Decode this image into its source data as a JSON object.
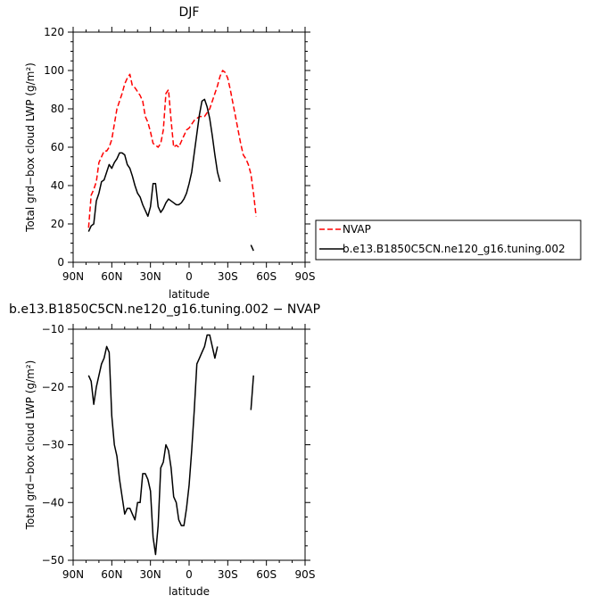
{
  "chart_data": [
    {
      "type": "line",
      "title": "DJF",
      "xlabel": "latitude",
      "ylabel": "Total grd−box cloud LWP (g/m²)",
      "xlim": [
        90,
        -90
      ],
      "ylim": [
        0,
        120
      ],
      "x_ticks": [
        90,
        60,
        30,
        0,
        -30,
        -60,
        -90
      ],
      "x_tick_labels": [
        "90N",
        "60N",
        "30N",
        "0",
        "30S",
        "60S",
        "90S"
      ],
      "y_ticks": [
        0,
        20,
        40,
        60,
        80,
        100,
        120
      ],
      "y_tick_labels": [
        "0",
        "20",
        "40",
        "60",
        "80",
        "100",
        "120"
      ],
      "legend": {
        "placement": "right",
        "entries": [
          "NVAP",
          "b.e13.B1850C5CN.ne120_g16.tuning.002"
        ]
      },
      "series": [
        {
          "name": "NVAP",
          "color": "#ff0000",
          "dash": "dashed",
          "segments": [
            [
              [
                78,
                18
              ],
              [
                76,
                35
              ],
              [
                74,
                38
              ],
              [
                72,
                42
              ],
              [
                70,
                52
              ],
              [
                68,
                55
              ],
              [
                66,
                58
              ],
              [
                64,
                58
              ],
              [
                62,
                60
              ],
              [
                60,
                64
              ],
              [
                58,
                72
              ],
              [
                56,
                80
              ],
              [
                54,
                84
              ],
              [
                52,
                88
              ],
              [
                50,
                93
              ],
              [
                48,
                96
              ],
              [
                46,
                98
              ],
              [
                44,
                92
              ],
              [
                42,
                91
              ],
              [
                40,
                89
              ],
              [
                38,
                87
              ],
              [
                36,
                84
              ],
              [
                34,
                76
              ],
              [
                32,
                73
              ],
              [
                30,
                68
              ],
              [
                28,
                62
              ],
              [
                26,
                61
              ],
              [
                24,
                60
              ],
              [
                22,
                62
              ],
              [
                20,
                69
              ],
              [
                18,
                88
              ],
              [
                16,
                90
              ],
              [
                14,
                74
              ],
              [
                12,
                60
              ],
              [
                10,
                61
              ],
              [
                8,
                60
              ],
              [
                6,
                63
              ],
              [
                4,
                66
              ],
              [
                2,
                69
              ],
              [
                0,
                70
              ],
              [
                -2,
                72
              ],
              [
                -4,
                74
              ],
              [
                -6,
                75
              ],
              [
                -8,
                76
              ],
              [
                -10,
                76
              ],
              [
                -12,
                76
              ],
              [
                -14,
                78
              ],
              [
                -16,
                80
              ],
              [
                -18,
                84
              ],
              [
                -20,
                88
              ],
              [
                -22,
                92
              ],
              [
                -24,
                97
              ],
              [
                -26,
                100
              ],
              [
                -28,
                99
              ],
              [
                -30,
                96
              ],
              [
                -32,
                90
              ],
              [
                -34,
                83
              ],
              [
                -36,
                76
              ],
              [
                -38,
                69
              ],
              [
                -40,
                62
              ],
              [
                -42,
                56
              ],
              [
                -44,
                54
              ],
              [
                -46,
                51
              ],
              [
                -48,
                46
              ],
              [
                -50,
                36
              ],
              [
                -52,
                24
              ]
            ]
          ]
        },
        {
          "name": "b.e13.B1850C5CN.ne120_g16.tuning.002",
          "color": "#000000",
          "dash": "solid",
          "segments": [
            [
              [
                78,
                16
              ],
              [
                76,
                19
              ],
              [
                74,
                20
              ],
              [
                72,
                32
              ],
              [
                70,
                36
              ],
              [
                68,
                42
              ],
              [
                66,
                43
              ],
              [
                64,
                47
              ],
              [
                62,
                51
              ],
              [
                60,
                49
              ],
              [
                58,
                52
              ],
              [
                56,
                54
              ],
              [
                54,
                57
              ],
              [
                52,
                57
              ],
              [
                50,
                56
              ],
              [
                48,
                51
              ],
              [
                46,
                49
              ],
              [
                44,
                45
              ],
              [
                42,
                40
              ],
              [
                40,
                36
              ],
              [
                38,
                34
              ],
              [
                36,
                30
              ],
              [
                34,
                27
              ],
              [
                32,
                24
              ],
              [
                30,
                29
              ],
              [
                28,
                41
              ],
              [
                26,
                41
              ],
              [
                24,
                29
              ],
              [
                22,
                26
              ],
              [
                20,
                28
              ],
              [
                18,
                31
              ],
              [
                16,
                33
              ],
              [
                14,
                32
              ],
              [
                12,
                31
              ],
              [
                10,
                30
              ],
              [
                8,
                30
              ],
              [
                6,
                31
              ],
              [
                4,
                33
              ],
              [
                2,
                36
              ],
              [
                0,
                41
              ],
              [
                -2,
                47
              ],
              [
                -4,
                57
              ],
              [
                -6,
                67
              ],
              [
                -8,
                77
              ],
              [
                -10,
                84
              ],
              [
                -12,
                85
              ],
              [
                -14,
                81
              ],
              [
                -16,
                75
              ],
              [
                -18,
                66
              ],
              [
                -20,
                56
              ],
              [
                -22,
                47
              ],
              [
                -24,
                42
              ]
            ],
            [
              [
                -48,
                9
              ],
              [
                -50,
                6
              ]
            ]
          ]
        }
      ]
    },
    {
      "type": "line",
      "title": "b.e13.B1850C5CN.ne120_g16.tuning.002 − NVAP",
      "xlabel": "latitude",
      "ylabel": "Total grd−box cloud LWP (g/m²)",
      "xlim": [
        90,
        -90
      ],
      "ylim": [
        -50,
        -10
      ],
      "x_ticks": [
        90,
        60,
        30,
        0,
        -30,
        -60,
        -90
      ],
      "x_tick_labels": [
        "90N",
        "60N",
        "30N",
        "0",
        "30S",
        "60S",
        "90S"
      ],
      "y_ticks": [
        -50,
        -40,
        -30,
        -20,
        -10
      ],
      "y_tick_labels": [
        "−50",
        "−40",
        "−30",
        "−20",
        "−10"
      ],
      "series": [
        {
          "color": "#000000",
          "dash": "solid",
          "segments": [
            [
              [
                78,
                -18
              ],
              [
                76,
                -19
              ],
              [
                74,
                -23
              ],
              [
                72,
                -20
              ],
              [
                70,
                -18
              ],
              [
                68,
                -16
              ],
              [
                66,
                -15
              ],
              [
                64,
                -13
              ],
              [
                62,
                -14
              ],
              [
                60,
                -25
              ],
              [
                58,
                -30
              ],
              [
                56,
                -32
              ],
              [
                54,
                -36
              ],
              [
                52,
                -39
              ],
              [
                50,
                -42
              ],
              [
                48,
                -41
              ],
              [
                46,
                -41
              ],
              [
                44,
                -42
              ],
              [
                42,
                -43
              ],
              [
                40,
                -40
              ],
              [
                38,
                -40
              ],
              [
                36,
                -35
              ],
              [
                34,
                -35
              ],
              [
                32,
                -36
              ],
              [
                30,
                -38
              ],
              [
                28,
                -46
              ],
              [
                26,
                -49
              ],
              [
                24,
                -44
              ],
              [
                22,
                -34
              ],
              [
                20,
                -33
              ],
              [
                18,
                -30
              ],
              [
                16,
                -31
              ],
              [
                14,
                -34
              ],
              [
                12,
                -39
              ],
              [
                10,
                -40
              ],
              [
                8,
                -43
              ],
              [
                6,
                -44
              ],
              [
                4,
                -44
              ],
              [
                2,
                -41
              ],
              [
                0,
                -37
              ],
              [
                -2,
                -31
              ],
              [
                -4,
                -24
              ],
              [
                -6,
                -16
              ],
              [
                -8,
                -15
              ],
              [
                -10,
                -14
              ],
              [
                -12,
                -13
              ],
              [
                -14,
                -11
              ],
              [
                -16,
                -11
              ],
              [
                -18,
                -13
              ],
              [
                -20,
                -15
              ],
              [
                -22,
                -13
              ]
            ],
            [
              [
                -48,
                -24
              ],
              [
                -50,
                -18
              ]
            ]
          ]
        }
      ]
    }
  ]
}
